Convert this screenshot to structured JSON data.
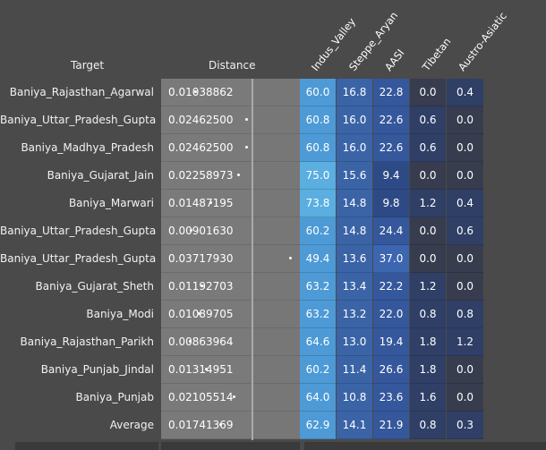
{
  "headers": {
    "target": "Target",
    "distance": "Distance",
    "components": [
      "Indus_Valley",
      "Steppe_Aryan",
      "AASI",
      "Tibetan",
      "Austro-Asiatic"
    ]
  },
  "rows": [
    {
      "target": "Baniya_Rajasthan_Agarwal",
      "distance": "0.01038862",
      "dot": 0.22,
      "values": [
        "60.0",
        "16.8",
        "22.8",
        "0.0",
        "0.4"
      ]
    },
    {
      "target": "Baniya_Uttar_Pradesh_Gupta",
      "distance": "0.02462500",
      "dot": 0.55,
      "values": [
        "60.8",
        "16.0",
        "22.6",
        "0.6",
        "0.0"
      ]
    },
    {
      "target": "Baniya_Madhya_Pradesh",
      "distance": "0.02462500",
      "dot": 0.55,
      "values": [
        "60.8",
        "16.0",
        "22.6",
        "0.6",
        "0.0"
      ]
    },
    {
      "target": "Baniya_Gujarat_Jain",
      "distance": "0.02258973",
      "dot": 0.5,
      "values": [
        "75.0",
        "15.6",
        "9.4",
        "0.0",
        "0.0"
      ]
    },
    {
      "target": "Baniya_Marwari",
      "distance": "0.01487195",
      "dot": 0.32,
      "values": [
        "73.8",
        "14.8",
        "9.8",
        "1.2",
        "0.4"
      ]
    },
    {
      "target": "Baniya_Uttar_Pradesh_Gupta",
      "distance": "0.00901630",
      "dot": 0.19,
      "values": [
        "60.2",
        "14.8",
        "24.4",
        "0.0",
        "0.6"
      ]
    },
    {
      "target": "Baniya_Uttar_Pradesh_Gupta",
      "distance": "0.03717930",
      "dot": 0.84,
      "values": [
        "49.4",
        "13.6",
        "37.0",
        "0.0",
        "0.0"
      ]
    },
    {
      "target": "Baniya_Gujarat_Sheth",
      "distance": "0.01192703",
      "dot": 0.26,
      "values": [
        "63.2",
        "13.4",
        "22.2",
        "1.2",
        "0.0"
      ]
    },
    {
      "target": "Baniya_Modi",
      "distance": "0.01089705",
      "dot": 0.24,
      "values": [
        "63.2",
        "13.2",
        "22.0",
        "0.8",
        "0.8"
      ]
    },
    {
      "target": "Baniya_Rajasthan_Parikh",
      "distance": "0.00863964",
      "dot": 0.18,
      "values": [
        "64.6",
        "13.0",
        "19.4",
        "1.8",
        "1.2"
      ]
    },
    {
      "target": "Baniya_Punjab_Jindal",
      "distance": "0.01314951",
      "dot": 0.29,
      "values": [
        "60.2",
        "11.4",
        "26.6",
        "1.8",
        "0.0"
      ]
    },
    {
      "target": "Baniya_Punjab",
      "distance": "0.02105514",
      "dot": 0.47,
      "values": [
        "64.0",
        "10.8",
        "23.6",
        "1.6",
        "0.0"
      ]
    },
    {
      "target": "Average",
      "distance": "0.01741369",
      "dot": 0.38,
      "values": [
        "62.9",
        "14.1",
        "21.9",
        "0.8",
        "0.3"
      ]
    }
  ],
  "colors": {
    "background": "#4a4a4a",
    "distance_cell": "#7a7a7a",
    "indus_high": "#5aaee0",
    "indus_mid": "#4d9ad6",
    "steppe": "#3a64a6",
    "aasi": "#35579b",
    "low": "#2f3f66",
    "zero": "#373c4e"
  }
}
